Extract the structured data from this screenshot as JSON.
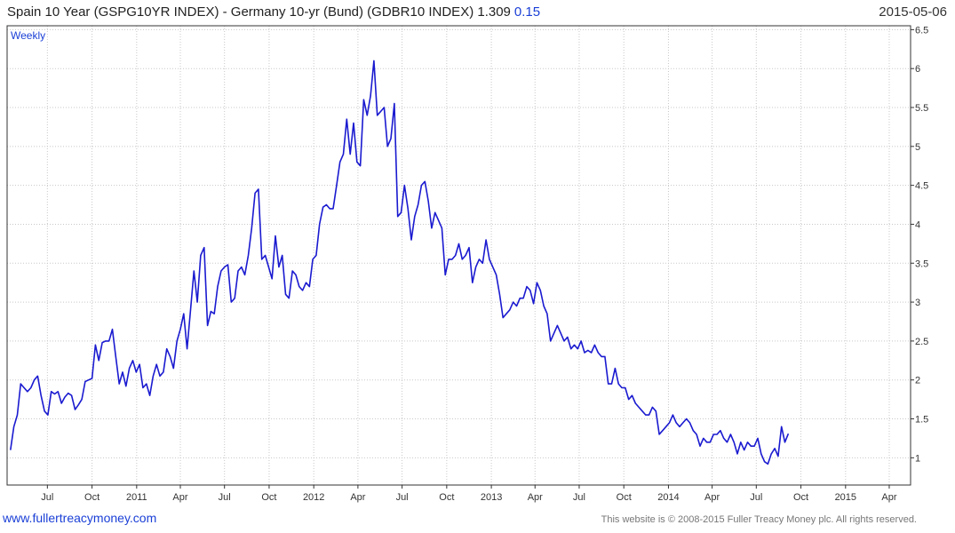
{
  "header": {
    "title": "Spain 10 Year (GSPG10YR INDEX) - Germany 10-yr (Bund)  (GDBR10 INDEX) 1.309",
    "change": "0.15",
    "date": "2015-05-06"
  },
  "footer": {
    "site": "www.fullertreacymoney.com",
    "copyright": "This website is © 2008-2015 Fuller Treacy Money plc. All rights reserved."
  },
  "colors": {
    "line": "#1a1ad0",
    "grid": "#c8c8c8",
    "frame": "#333333",
    "text": "#1a3fd6"
  },
  "chart_data": {
    "type": "line",
    "title": "Spain 10 Year (GSPG10YR INDEX) - Germany 10-yr (Bund)  (GDBR10 INDEX)",
    "period_label": "Weekly",
    "frequency": "weekly",
    "x_ticks": [
      "Jul",
      "Oct",
      "2011",
      "Apr",
      "Jul",
      "Oct",
      "2012",
      "Apr",
      "Jul",
      "Oct",
      "2013",
      "Apr",
      "Jul",
      "Oct",
      "2014",
      "Apr",
      "Jul",
      "Oct",
      "2015",
      "Apr"
    ],
    "x_tick_dates": [
      "2010-07-01",
      "2010-10-01",
      "2011-01-01",
      "2011-04-01",
      "2011-07-01",
      "2011-10-01",
      "2012-01-01",
      "2012-04-01",
      "2012-07-01",
      "2012-10-01",
      "2013-01-01",
      "2013-04-01",
      "2013-07-01",
      "2013-10-01",
      "2014-01-01",
      "2014-04-01",
      "2014-07-01",
      "2014-10-01",
      "2015-01-01",
      "2015-04-01"
    ],
    "y_ticks": [
      "1",
      "1.5",
      "2",
      "2.5",
      "3",
      "3.5",
      "4",
      "4.5",
      "5",
      "5.5",
      "6",
      "6.5"
    ],
    "ylim": [
      0.65,
      6.55
    ],
    "xlim": [
      "2010-04-09",
      "2015-05-15"
    ],
    "grid": true,
    "series": [
      {
        "values": [
          [
            "2010-04-16",
            1.1
          ],
          [
            "2010-04-23",
            1.4
          ],
          [
            "2010-04-30",
            1.55
          ],
          [
            "2010-05-07",
            1.95
          ],
          [
            "2010-05-14",
            1.9
          ],
          [
            "2010-05-21",
            1.85
          ],
          [
            "2010-05-28",
            1.9
          ],
          [
            "2010-06-04",
            2.0
          ],
          [
            "2010-06-11",
            2.05
          ],
          [
            "2010-06-18",
            1.8
          ],
          [
            "2010-06-25",
            1.6
          ],
          [
            "2010-07-02",
            1.55
          ],
          [
            "2010-07-09",
            1.85
          ],
          [
            "2010-07-16",
            1.82
          ],
          [
            "2010-07-23",
            1.85
          ],
          [
            "2010-07-30",
            1.7
          ],
          [
            "2010-08-06",
            1.78
          ],
          [
            "2010-08-13",
            1.83
          ],
          [
            "2010-08-20",
            1.8
          ],
          [
            "2010-08-27",
            1.62
          ],
          [
            "2010-09-03",
            1.68
          ],
          [
            "2010-09-10",
            1.75
          ],
          [
            "2010-09-17",
            1.98
          ],
          [
            "2010-09-24",
            2.0
          ],
          [
            "2010-10-01",
            2.02
          ],
          [
            "2010-10-08",
            2.45
          ],
          [
            "2010-10-15",
            2.25
          ],
          [
            "2010-10-22",
            2.48
          ],
          [
            "2010-10-29",
            2.5
          ],
          [
            "2010-11-05",
            2.5
          ],
          [
            "2010-11-12",
            2.65
          ],
          [
            "2010-11-19",
            2.3
          ],
          [
            "2010-11-26",
            1.95
          ],
          [
            "2010-12-03",
            2.1
          ],
          [
            "2010-12-10",
            1.92
          ],
          [
            "2010-12-17",
            2.15
          ],
          [
            "2010-12-24",
            2.25
          ],
          [
            "2010-12-31",
            2.1
          ],
          [
            "2011-01-07",
            2.2
          ],
          [
            "2011-01-14",
            1.9
          ],
          [
            "2011-01-21",
            1.95
          ],
          [
            "2011-01-28",
            1.8
          ],
          [
            "2011-02-04",
            2.05
          ],
          [
            "2011-02-11",
            2.2
          ],
          [
            "2011-02-18",
            2.05
          ],
          [
            "2011-02-25",
            2.1
          ],
          [
            "2011-03-04",
            2.4
          ],
          [
            "2011-03-11",
            2.3
          ],
          [
            "2011-03-18",
            2.15
          ],
          [
            "2011-03-25",
            2.5
          ],
          [
            "2011-04-01",
            2.65
          ],
          [
            "2011-04-08",
            2.85
          ],
          [
            "2011-04-15",
            2.4
          ],
          [
            "2011-04-22",
            2.9
          ],
          [
            "2011-04-29",
            3.4
          ],
          [
            "2011-05-06",
            3.0
          ],
          [
            "2011-05-13",
            3.6
          ],
          [
            "2011-05-20",
            3.7
          ],
          [
            "2011-05-27",
            2.7
          ],
          [
            "2011-06-03",
            2.88
          ],
          [
            "2011-06-10",
            2.85
          ],
          [
            "2011-06-17",
            3.2
          ],
          [
            "2011-06-24",
            3.4
          ],
          [
            "2011-07-01",
            3.45
          ],
          [
            "2011-07-08",
            3.48
          ],
          [
            "2011-07-15",
            3.0
          ],
          [
            "2011-07-22",
            3.05
          ],
          [
            "2011-07-29",
            3.4
          ],
          [
            "2011-08-05",
            3.45
          ],
          [
            "2011-08-12",
            3.35
          ],
          [
            "2011-08-19",
            3.6
          ],
          [
            "2011-08-26",
            3.95
          ],
          [
            "2011-09-02",
            4.4
          ],
          [
            "2011-09-09",
            4.45
          ],
          [
            "2011-09-16",
            3.55
          ],
          [
            "2011-09-23",
            3.6
          ],
          [
            "2011-09-30",
            3.45
          ],
          [
            "2011-10-07",
            3.3
          ],
          [
            "2011-10-14",
            3.85
          ],
          [
            "2011-10-21",
            3.45
          ],
          [
            "2011-10-28",
            3.6
          ],
          [
            "2011-11-04",
            3.1
          ],
          [
            "2011-11-11",
            3.05
          ],
          [
            "2011-11-18",
            3.4
          ],
          [
            "2011-11-25",
            3.35
          ],
          [
            "2011-12-02",
            3.2
          ],
          [
            "2011-12-09",
            3.15
          ],
          [
            "2011-12-16",
            3.25
          ],
          [
            "2011-12-23",
            3.2
          ],
          [
            "2011-12-30",
            3.55
          ],
          [
            "2012-01-06",
            3.6
          ],
          [
            "2012-01-13",
            4.0
          ],
          [
            "2012-01-20",
            4.22
          ],
          [
            "2012-01-27",
            4.25
          ],
          [
            "2012-02-03",
            4.2
          ],
          [
            "2012-02-10",
            4.2
          ],
          [
            "2012-02-17",
            4.5
          ],
          [
            "2012-02-24",
            4.8
          ],
          [
            "2012-03-02",
            4.9
          ],
          [
            "2012-03-09",
            5.35
          ],
          [
            "2012-03-16",
            4.9
          ],
          [
            "2012-03-23",
            5.3
          ],
          [
            "2012-03-30",
            4.8
          ],
          [
            "2012-04-06",
            4.75
          ],
          [
            "2012-04-13",
            5.6
          ],
          [
            "2012-04-20",
            5.4
          ],
          [
            "2012-04-27",
            5.65
          ],
          [
            "2012-05-04",
            6.1
          ],
          [
            "2012-05-11",
            5.4
          ],
          [
            "2012-05-18",
            5.45
          ],
          [
            "2012-05-25",
            5.5
          ],
          [
            "2012-06-01",
            5.0
          ],
          [
            "2012-06-08",
            5.1
          ],
          [
            "2012-06-15",
            5.55
          ],
          [
            "2012-06-22",
            4.1
          ],
          [
            "2012-06-29",
            4.15
          ],
          [
            "2012-07-06",
            4.5
          ],
          [
            "2012-07-13",
            4.2
          ],
          [
            "2012-07-20",
            3.8
          ],
          [
            "2012-07-27",
            4.1
          ],
          [
            "2012-08-03",
            4.25
          ],
          [
            "2012-08-10",
            4.5
          ],
          [
            "2012-08-17",
            4.55
          ],
          [
            "2012-08-24",
            4.3
          ],
          [
            "2012-08-31",
            3.95
          ],
          [
            "2012-09-07",
            4.15
          ],
          [
            "2012-09-14",
            4.05
          ],
          [
            "2012-09-21",
            3.95
          ],
          [
            "2012-09-28",
            3.35
          ],
          [
            "2012-10-05",
            3.55
          ],
          [
            "2012-10-12",
            3.55
          ],
          [
            "2012-10-19",
            3.6
          ],
          [
            "2012-10-26",
            3.75
          ],
          [
            "2012-11-02",
            3.55
          ],
          [
            "2012-11-09",
            3.6
          ],
          [
            "2012-11-16",
            3.7
          ],
          [
            "2012-11-23",
            3.25
          ],
          [
            "2012-11-30",
            3.45
          ],
          [
            "2012-12-07",
            3.55
          ],
          [
            "2012-12-14",
            3.5
          ],
          [
            "2012-12-21",
            3.8
          ],
          [
            "2012-12-28",
            3.55
          ],
          [
            "2013-01-04",
            3.45
          ],
          [
            "2013-01-11",
            3.35
          ],
          [
            "2013-01-18",
            3.1
          ],
          [
            "2013-01-25",
            2.8
          ],
          [
            "2013-02-01",
            2.85
          ],
          [
            "2013-02-08",
            2.9
          ],
          [
            "2013-02-15",
            3.0
          ],
          [
            "2013-02-22",
            2.95
          ],
          [
            "2013-03-01",
            3.05
          ],
          [
            "2013-03-08",
            3.05
          ],
          [
            "2013-03-15",
            3.2
          ],
          [
            "2013-03-22",
            3.15
          ],
          [
            "2013-03-29",
            2.98
          ],
          [
            "2013-04-05",
            3.25
          ],
          [
            "2013-04-12",
            3.15
          ],
          [
            "2013-04-19",
            2.95
          ],
          [
            "2013-04-26",
            2.85
          ],
          [
            "2013-05-03",
            2.5
          ],
          [
            "2013-05-10",
            2.6
          ],
          [
            "2013-05-17",
            2.7
          ],
          [
            "2013-05-24",
            2.6
          ],
          [
            "2013-05-31",
            2.5
          ],
          [
            "2013-06-07",
            2.55
          ],
          [
            "2013-06-14",
            2.4
          ],
          [
            "2013-06-21",
            2.45
          ],
          [
            "2013-06-28",
            2.4
          ],
          [
            "2013-07-05",
            2.5
          ],
          [
            "2013-07-12",
            2.35
          ],
          [
            "2013-07-19",
            2.38
          ],
          [
            "2013-07-26",
            2.35
          ],
          [
            "2013-08-02",
            2.45
          ],
          [
            "2013-08-09",
            2.35
          ],
          [
            "2013-08-16",
            2.3
          ],
          [
            "2013-08-23",
            2.3
          ],
          [
            "2013-08-30",
            1.95
          ],
          [
            "2013-09-06",
            1.95
          ],
          [
            "2013-09-13",
            2.15
          ],
          [
            "2013-09-20",
            1.95
          ],
          [
            "2013-09-27",
            1.9
          ],
          [
            "2013-10-04",
            1.9
          ],
          [
            "2013-10-11",
            1.75
          ],
          [
            "2013-10-18",
            1.8
          ],
          [
            "2013-10-25",
            1.7
          ],
          [
            "2013-11-01",
            1.65
          ],
          [
            "2013-11-08",
            1.6
          ],
          [
            "2013-11-15",
            1.55
          ],
          [
            "2013-11-22",
            1.55
          ],
          [
            "2013-11-29",
            1.65
          ],
          [
            "2013-12-06",
            1.6
          ],
          [
            "2013-12-13",
            1.3
          ],
          [
            "2013-12-20",
            1.35
          ],
          [
            "2013-12-27",
            1.4
          ],
          [
            "2014-01-03",
            1.45
          ],
          [
            "2014-01-10",
            1.55
          ],
          [
            "2014-01-17",
            1.45
          ],
          [
            "2014-01-24",
            1.4
          ],
          [
            "2014-01-31",
            1.45
          ],
          [
            "2014-02-07",
            1.5
          ],
          [
            "2014-02-14",
            1.45
          ],
          [
            "2014-02-21",
            1.35
          ],
          [
            "2014-02-28",
            1.3
          ],
          [
            "2014-03-07",
            1.15
          ],
          [
            "2014-03-14",
            1.25
          ],
          [
            "2014-03-21",
            1.2
          ],
          [
            "2014-03-28",
            1.2
          ],
          [
            "2014-04-04",
            1.3
          ],
          [
            "2014-04-11",
            1.3
          ],
          [
            "2014-04-18",
            1.35
          ],
          [
            "2014-04-25",
            1.25
          ],
          [
            "2014-05-02",
            1.2
          ],
          [
            "2014-05-09",
            1.3
          ],
          [
            "2014-05-16",
            1.2
          ],
          [
            "2014-05-23",
            1.05
          ],
          [
            "2014-05-30",
            1.2
          ],
          [
            "2014-06-06",
            1.1
          ],
          [
            "2014-06-13",
            1.2
          ],
          [
            "2014-06-20",
            1.15
          ],
          [
            "2014-06-27",
            1.15
          ],
          [
            "2014-07-04",
            1.25
          ],
          [
            "2014-07-11",
            1.05
          ],
          [
            "2014-07-18",
            0.95
          ],
          [
            "2014-07-25",
            0.92
          ],
          [
            "2014-08-01",
            1.05
          ],
          [
            "2014-08-08",
            1.12
          ],
          [
            "2014-08-15",
            1.02
          ],
          [
            "2014-08-22",
            1.4
          ],
          [
            "2014-08-29",
            1.2
          ],
          [
            "2014-09-05",
            1.31
          ]
        ]
      }
    ]
  }
}
